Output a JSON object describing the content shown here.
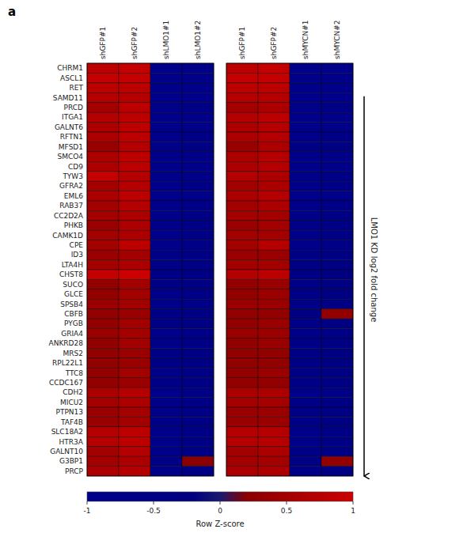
{
  "chart_data": {
    "type": "heatmap",
    "title": "a",
    "annotations": [
      "LMO1 KD log2 fold change"
    ],
    "rows": [
      "CHRM1",
      "ASCL1",
      "RET",
      "SAMD11",
      "PRCD",
      "ITGA1",
      "GALNT6",
      "RFTN1",
      "MFSD1",
      "SMCO4",
      "CD9",
      "TYW3",
      "GFRA2",
      "EML6",
      "RAB37",
      "CC2D2A",
      "PHKB",
      "CAMK1D",
      "CPE",
      "ID3",
      "LTA4H",
      "CHST8",
      "SUCO",
      "GLCE",
      "SPSB4",
      "CBFB",
      "PYGB",
      "GRIA4",
      "ANKRD28",
      "MRS2",
      "RPL22L1",
      "TTC8",
      "CCDC167",
      "CDH2",
      "MICU2",
      "PTPN13",
      "TAF4B",
      "SLC18A2",
      "HTR3A",
      "GALNT10",
      "G3BP1",
      "PRCP"
    ],
    "panels": [
      {
        "columns": [
          "shGFP#1",
          "shGFP#2",
          "shLMO1#1",
          "shLMO1#2"
        ],
        "values": [
          [
            0.8,
            0.9,
            -1.0,
            -0.8
          ],
          [
            0.9,
            0.9,
            -1.0,
            -0.9
          ],
          [
            0.8,
            0.8,
            -1.0,
            -0.9
          ],
          [
            0.7,
            0.7,
            -1.0,
            -0.9
          ],
          [
            0.5,
            0.8,
            -0.8,
            -0.7
          ],
          [
            0.7,
            0.8,
            -1.0,
            -0.8
          ],
          [
            0.6,
            0.8,
            -1.0,
            -0.8
          ],
          [
            0.6,
            0.8,
            -0.9,
            -0.7
          ],
          [
            0.4,
            0.7,
            -0.8,
            -0.5
          ],
          [
            0.6,
            0.8,
            -1.0,
            -0.8
          ],
          [
            0.6,
            0.8,
            -1.0,
            -0.8
          ],
          [
            0.9,
            0.7,
            -0.9,
            -0.8
          ],
          [
            0.5,
            0.7,
            -0.9,
            -0.7
          ],
          [
            0.6,
            0.8,
            -1.0,
            -0.8
          ],
          [
            0.5,
            0.7,
            -0.9,
            -0.7
          ],
          [
            0.5,
            0.6,
            -0.9,
            -0.7
          ],
          [
            0.4,
            0.6,
            -0.9,
            -0.7
          ],
          [
            0.5,
            0.6,
            -0.9,
            -0.7
          ],
          [
            0.5,
            0.8,
            -0.9,
            -0.7
          ],
          [
            0.4,
            0.5,
            -0.8,
            -0.6
          ],
          [
            0.5,
            0.6,
            -0.8,
            -0.7
          ],
          [
            0.9,
            1.0,
            -0.6,
            -0.5
          ],
          [
            0.3,
            0.5,
            -0.7,
            -0.5
          ],
          [
            0.3,
            0.5,
            -0.8,
            -0.6
          ],
          [
            0.4,
            0.5,
            -0.8,
            -0.6
          ],
          [
            0.3,
            0.4,
            -0.6,
            -0.5
          ],
          [
            0.3,
            0.5,
            -0.7,
            -0.5
          ],
          [
            0.4,
            0.5,
            -0.8,
            -0.6
          ],
          [
            0.3,
            0.5,
            -0.8,
            -0.6
          ],
          [
            0.3,
            0.4,
            -0.7,
            -0.5
          ],
          [
            0.3,
            0.4,
            -0.7,
            -0.5
          ],
          [
            0.3,
            0.5,
            -0.8,
            -0.6
          ],
          [
            0.3,
            0.4,
            -0.7,
            -0.5
          ],
          [
            0.6,
            0.7,
            -0.9,
            -0.7
          ],
          [
            0.5,
            0.6,
            -0.8,
            -0.6
          ],
          [
            0.4,
            0.5,
            -0.8,
            -0.6
          ],
          [
            0.4,
            0.5,
            -0.7,
            -0.5
          ],
          [
            0.7,
            0.8,
            -0.9,
            -0.7
          ],
          [
            0.7,
            0.8,
            -0.9,
            -0.7
          ],
          [
            0.5,
            0.7,
            -0.8,
            -0.6
          ],
          [
            0.5,
            0.6,
            -0.5,
            0.2
          ],
          [
            0.6,
            0.7,
            -0.8,
            -0.5
          ]
        ]
      },
      {
        "columns": [
          "shGFP#1",
          "shGFP#2",
          "shMYCN#1",
          "shMYCN#2"
        ],
        "values": [
          [
            0.8,
            0.9,
            -1.0,
            -0.9
          ],
          [
            0.9,
            0.9,
            -1.0,
            -0.9
          ],
          [
            0.8,
            0.8,
            -1.0,
            -0.9
          ],
          [
            0.7,
            0.7,
            -1.0,
            -0.9
          ],
          [
            0.5,
            0.6,
            -0.8,
            -0.5
          ],
          [
            0.7,
            0.8,
            -1.0,
            -0.8
          ],
          [
            0.6,
            0.7,
            -1.0,
            -0.8
          ],
          [
            0.6,
            0.7,
            -0.9,
            -0.7
          ],
          [
            0.4,
            0.6,
            -0.7,
            -0.4
          ],
          [
            0.6,
            0.7,
            -1.0,
            -0.8
          ],
          [
            0.6,
            0.7,
            -1.0,
            -0.8
          ],
          [
            0.7,
            0.6,
            -0.8,
            -0.6
          ],
          [
            0.5,
            0.6,
            -0.8,
            -0.6
          ],
          [
            0.6,
            0.7,
            -1.0,
            -0.8
          ],
          [
            0.5,
            0.6,
            -0.8,
            -0.6
          ],
          [
            0.5,
            0.5,
            -0.8,
            -0.6
          ],
          [
            0.4,
            0.5,
            -0.8,
            -0.6
          ],
          [
            0.5,
            0.5,
            -0.8,
            -0.6
          ],
          [
            0.5,
            0.7,
            -0.9,
            -0.6
          ],
          [
            0.4,
            0.4,
            -0.7,
            -0.5
          ],
          [
            0.5,
            0.5,
            -0.7,
            -0.5
          ],
          [
            0.7,
            0.8,
            -0.5,
            -0.3
          ],
          [
            0.3,
            0.4,
            -0.6,
            -0.4
          ],
          [
            0.3,
            0.4,
            -0.6,
            -0.4
          ],
          [
            0.4,
            0.4,
            -0.7,
            -0.5
          ],
          [
            0.3,
            0.3,
            -0.3,
            0.3
          ],
          [
            0.3,
            0.4,
            -0.6,
            -0.4
          ],
          [
            0.4,
            0.4,
            -0.7,
            -0.5
          ],
          [
            0.3,
            0.4,
            -0.7,
            -0.5
          ],
          [
            0.3,
            0.3,
            -0.6,
            -0.4
          ],
          [
            0.3,
            0.3,
            -0.6,
            -0.4
          ],
          [
            0.3,
            0.4,
            -0.7,
            -0.5
          ],
          [
            0.3,
            0.3,
            -0.6,
            -0.4
          ],
          [
            0.6,
            0.6,
            -0.9,
            -0.7
          ],
          [
            0.5,
            0.5,
            -0.7,
            -0.5
          ],
          [
            0.4,
            0.4,
            -0.7,
            -0.5
          ],
          [
            0.4,
            0.4,
            -0.6,
            -0.4
          ],
          [
            0.7,
            0.7,
            -0.9,
            -0.6
          ],
          [
            0.7,
            0.7,
            -0.9,
            -0.7
          ],
          [
            0.5,
            0.6,
            -0.7,
            -0.5
          ],
          [
            0.5,
            0.5,
            -0.4,
            0.3
          ],
          [
            0.6,
            0.6,
            -0.7,
            -0.4
          ]
        ]
      }
    ],
    "colorbar": {
      "label": "Row Z-score",
      "range": [
        -1.0,
        1.0
      ],
      "ticks": [
        -1,
        -0.5,
        0,
        0.5,
        1
      ]
    },
    "colorscale": [
      [
        0.0,
        "#00008B"
      ],
      [
        0.4,
        "#000080"
      ],
      [
        0.5,
        "#191970"
      ],
      [
        0.6,
        "#8B0000"
      ],
      [
        1.0,
        "#CC0000"
      ]
    ]
  }
}
